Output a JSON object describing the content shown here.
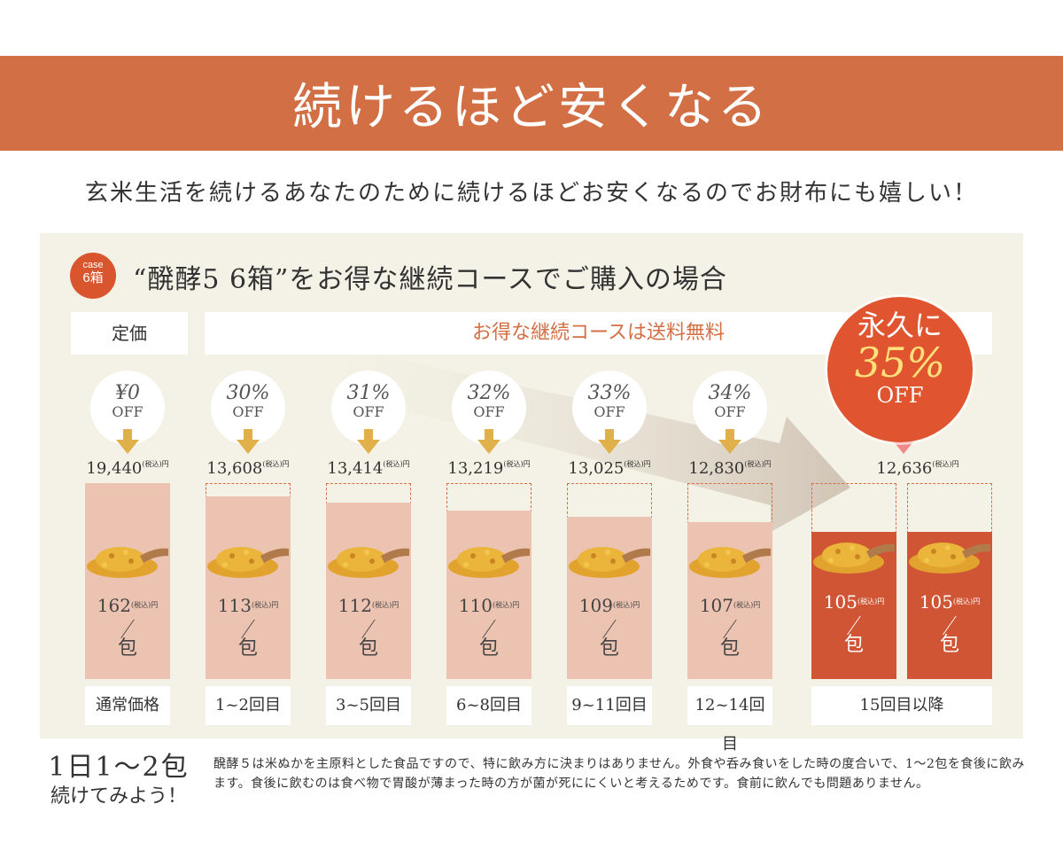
{
  "banner": {
    "title": "続けるほど安くなる"
  },
  "subtitle": "玄米生活を続けるあなたのために続けるほどお安くなるのでお財布にも嬉しい！",
  "case": {
    "badge_small": "case",
    "badge_num": "6箱",
    "title": "“醗酵5 6箱”をお得な継続コースでご購入の場合"
  },
  "labels": {
    "regular": "定価",
    "free_shipping": "お得な継続コースは送料無料"
  },
  "tax_label": "(税込)",
  "yen": "円",
  "per_pack": "包",
  "slash": "／",
  "columns": [
    {
      "discount": "¥0",
      "off": "OFF",
      "price": "19,440",
      "unit": "162",
      "stage": "通常価格",
      "fill": 1.0
    },
    {
      "discount": "30%",
      "off": "OFF",
      "price": "13,608",
      "unit": "113",
      "stage": "1~2回目",
      "fill": 0.93
    },
    {
      "discount": "31%",
      "off": "OFF",
      "price": "13,414",
      "unit": "112",
      "stage": "3~5回目",
      "fill": 0.9
    },
    {
      "discount": "32%",
      "off": "OFF",
      "price": "13,219",
      "unit": "110",
      "stage": "6~8回目",
      "fill": 0.86
    },
    {
      "discount": "33%",
      "off": "OFF",
      "price": "13,025",
      "unit": "109",
      "stage": "9~11回目",
      "fill": 0.83
    },
    {
      "discount": "34%",
      "off": "OFF",
      "price": "12,830",
      "unit": "107",
      "stage": "12~14回目",
      "fill": 0.8
    }
  ],
  "final": {
    "line1": "永久に",
    "line2": "35%",
    "line3": "OFF",
    "price": "12,636",
    "unit": "105",
    "stage": "15回目以降",
    "fill": 0.75
  },
  "bottom": {
    "headline": "1日1〜2包",
    "sub": "続けてみよう！",
    "note": "醗酵５は米ぬかを主原料とした食品ですので、特に飲み方に決まりはありません。外食や呑み食いをした時の度合いで、1〜2包を食後に飲みます。食後に飲むのは食べ物で胃酸が薄まった時の方が菌が死ににくいと考えるためです。食前に飲んでも問題ありません。"
  },
  "colors": {
    "accent": "#d26f44",
    "bar": "#ecc3b1",
    "bar_final": "#cf5534",
    "panel": "#f4f2e6"
  }
}
